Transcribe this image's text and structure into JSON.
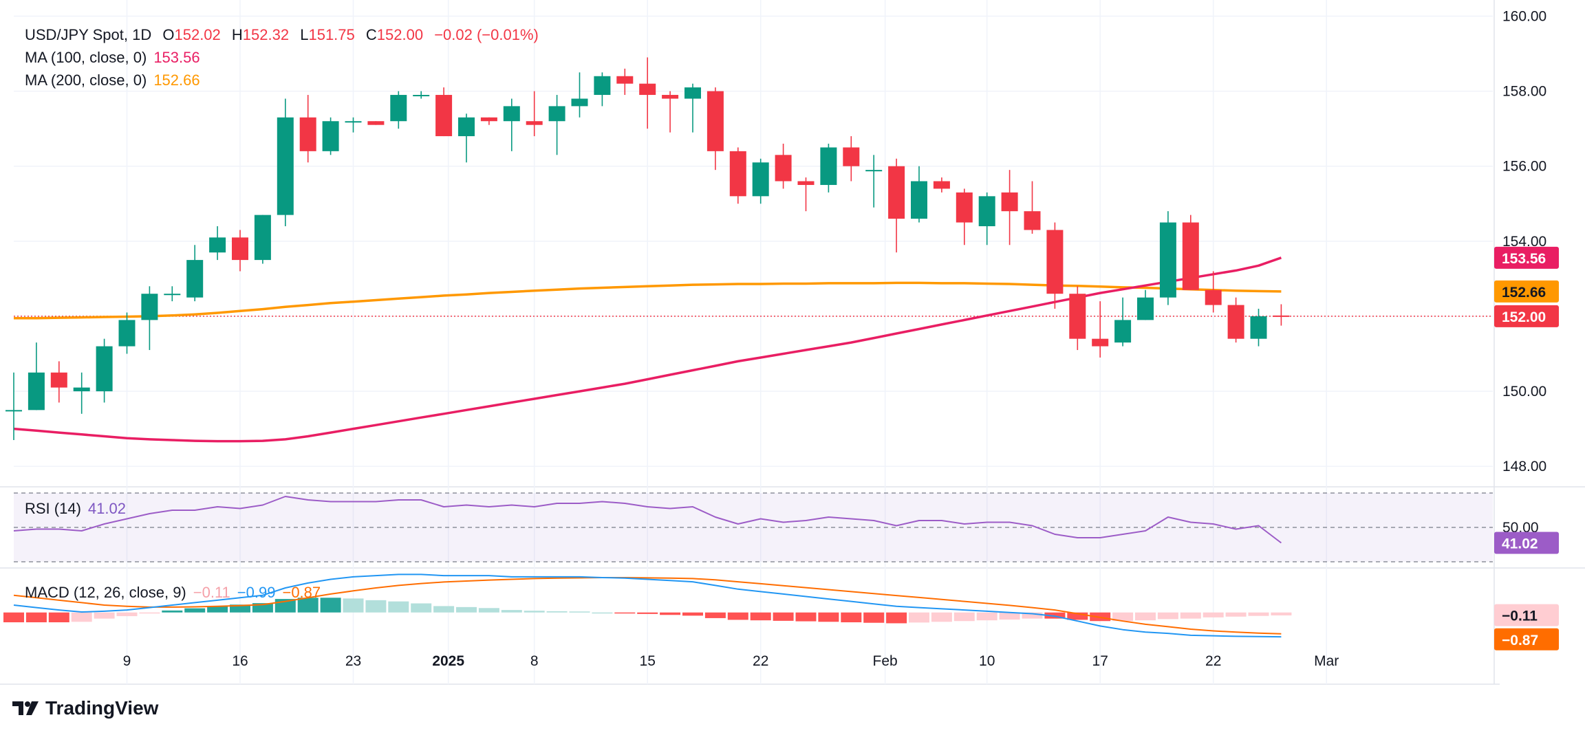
{
  "header": {
    "symbol": "USD/JPY Spot, 1D",
    "o_label": "O",
    "o_value": "152.02",
    "h_label": "H",
    "h_value": "152.32",
    "l_label": "L",
    "l_value": "151.75",
    "c_label": "C",
    "c_value": "152.00",
    "change": "−0.02 (−0.01%)"
  },
  "legends": {
    "ma100_label": "MA (100, close, 0)",
    "ma100_value": "153.56",
    "ma200_label": "MA (200, close, 0)",
    "ma200_value": "152.66",
    "rsi_label": "RSI (14)",
    "rsi_value": "41.02",
    "macd_label": "MACD (12, 26, close, 9)",
    "macd_hist": "−0.11",
    "macd_line": "−0.99",
    "macd_signal": "−0.87"
  },
  "brand": {
    "name": "TradingView"
  },
  "colors": {
    "up": "#089981",
    "down": "#f23645",
    "ma100": "#e91e63",
    "ma200": "#ff9800",
    "rsi": "#9c5cc7",
    "macd": "#2196f3",
    "signal": "#ff6d00"
  },
  "chart_data": {
    "type": "candlestick",
    "title": "USD/JPY Spot, 1D",
    "price_axis": {
      "ticks": [
        "160.00",
        "158.00",
        "156.00",
        "154.00",
        "152.00",
        "150.00",
        "148.00"
      ],
      "range": [
        147.6,
        160.1
      ]
    },
    "rsi_axis": {
      "ticks": [
        "50.00"
      ],
      "range": [
        28,
        72
      ]
    },
    "x_labels": [
      "9",
      "16",
      "23",
      "2025",
      "8",
      "15",
      "22",
      "Feb",
      "10",
      "17",
      "22",
      "Mar"
    ],
    "tags": {
      "ma100": "153.56",
      "ma200": "152.66",
      "price": "152.00",
      "rsi": "41.02",
      "macd_hist": "−0.11",
      "macd_signal": "−0.87"
    },
    "candles": [
      {
        "o": 149.5,
        "h": 150.5,
        "l": 148.7,
        "c": 149.5
      },
      {
        "o": 149.5,
        "h": 151.3,
        "l": 149.5,
        "c": 150.5
      },
      {
        "o": 150.5,
        "h": 150.8,
        "l": 149.7,
        "c": 150.1
      },
      {
        "o": 150.0,
        "h": 150.5,
        "l": 149.4,
        "c": 150.1
      },
      {
        "o": 150.0,
        "h": 151.4,
        "l": 149.7,
        "c": 151.2
      },
      {
        "o": 151.2,
        "h": 152.1,
        "l": 151.0,
        "c": 151.9
      },
      {
        "o": 151.9,
        "h": 152.8,
        "l": 151.1,
        "c": 152.6
      },
      {
        "o": 152.6,
        "h": 152.8,
        "l": 152.4,
        "c": 152.6
      },
      {
        "o": 152.5,
        "h": 153.9,
        "l": 152.4,
        "c": 153.5
      },
      {
        "o": 153.7,
        "h": 154.4,
        "l": 153.5,
        "c": 154.1
      },
      {
        "o": 154.1,
        "h": 154.3,
        "l": 153.2,
        "c": 153.5
      },
      {
        "o": 153.5,
        "h": 154.7,
        "l": 153.4,
        "c": 154.7
      },
      {
        "o": 154.7,
        "h": 157.8,
        "l": 154.4,
        "c": 157.3
      },
      {
        "o": 157.3,
        "h": 157.9,
        "l": 156.1,
        "c": 156.4
      },
      {
        "o": 156.4,
        "h": 157.3,
        "l": 156.3,
        "c": 157.2
      },
      {
        "o": 157.2,
        "h": 157.3,
        "l": 156.9,
        "c": 157.2
      },
      {
        "o": 157.2,
        "h": 157.2,
        "l": 157.1,
        "c": 157.1
      },
      {
        "o": 157.2,
        "h": 158.0,
        "l": 157.0,
        "c": 157.9
      },
      {
        "o": 157.9,
        "h": 158.0,
        "l": 157.8,
        "c": 157.9
      },
      {
        "o": 157.9,
        "h": 158.1,
        "l": 156.8,
        "c": 156.8
      },
      {
        "o": 156.8,
        "h": 157.4,
        "l": 156.1,
        "c": 157.3
      },
      {
        "o": 157.3,
        "h": 157.3,
        "l": 157.1,
        "c": 157.2
      },
      {
        "o": 157.2,
        "h": 157.8,
        "l": 156.4,
        "c": 157.6
      },
      {
        "o": 157.2,
        "h": 158.0,
        "l": 156.8,
        "c": 157.1
      },
      {
        "o": 157.2,
        "h": 157.9,
        "l": 156.3,
        "c": 157.6
      },
      {
        "o": 157.6,
        "h": 158.5,
        "l": 157.3,
        "c": 157.8
      },
      {
        "o": 157.9,
        "h": 158.5,
        "l": 157.6,
        "c": 158.4
      },
      {
        "o": 158.4,
        "h": 158.6,
        "l": 157.9,
        "c": 158.2
      },
      {
        "o": 158.2,
        "h": 158.9,
        "l": 157.0,
        "c": 157.9
      },
      {
        "o": 157.9,
        "h": 158.0,
        "l": 156.9,
        "c": 157.8
      },
      {
        "o": 157.8,
        "h": 158.2,
        "l": 156.9,
        "c": 158.1
      },
      {
        "o": 158.0,
        "h": 158.1,
        "l": 155.9,
        "c": 156.4
      },
      {
        "o": 156.4,
        "h": 156.5,
        "l": 155.0,
        "c": 155.2
      },
      {
        "o": 155.2,
        "h": 156.2,
        "l": 155.0,
        "c": 156.1
      },
      {
        "o": 156.3,
        "h": 156.6,
        "l": 155.4,
        "c": 155.6
      },
      {
        "o": 155.6,
        "h": 155.7,
        "l": 154.8,
        "c": 155.5
      },
      {
        "o": 155.5,
        "h": 156.6,
        "l": 155.3,
        "c": 156.5
      },
      {
        "o": 156.5,
        "h": 156.8,
        "l": 155.6,
        "c": 156.0
      },
      {
        "o": 155.9,
        "h": 156.3,
        "l": 154.9,
        "c": 155.9
      },
      {
        "o": 156.0,
        "h": 156.2,
        "l": 153.7,
        "c": 154.6
      },
      {
        "o": 154.6,
        "h": 156.0,
        "l": 154.5,
        "c": 155.6
      },
      {
        "o": 155.6,
        "h": 155.7,
        "l": 155.3,
        "c": 155.4
      },
      {
        "o": 155.3,
        "h": 155.4,
        "l": 153.9,
        "c": 154.5
      },
      {
        "o": 154.4,
        "h": 155.3,
        "l": 153.9,
        "c": 155.2
      },
      {
        "o": 155.3,
        "h": 155.9,
        "l": 153.9,
        "c": 154.8
      },
      {
        "o": 154.8,
        "h": 155.6,
        "l": 154.2,
        "c": 154.3
      },
      {
        "o": 154.3,
        "h": 154.5,
        "l": 152.2,
        "c": 152.6
      },
      {
        "o": 152.6,
        "h": 152.8,
        "l": 151.1,
        "c": 151.4
      },
      {
        "o": 151.4,
        "h": 152.4,
        "l": 150.9,
        "c": 151.2
      },
      {
        "o": 151.3,
        "h": 152.5,
        "l": 151.2,
        "c": 151.9
      },
      {
        "o": 151.9,
        "h": 152.7,
        "l": 151.9,
        "c": 152.5
      },
      {
        "o": 152.5,
        "h": 154.8,
        "l": 152.3,
        "c": 154.5
      },
      {
        "o": 154.5,
        "h": 154.7,
        "l": 152.7,
        "c": 152.7
      },
      {
        "o": 152.7,
        "h": 153.2,
        "l": 152.1,
        "c": 152.3
      },
      {
        "o": 152.3,
        "h": 152.5,
        "l": 151.3,
        "c": 151.4
      },
      {
        "o": 151.4,
        "h": 152.2,
        "l": 151.2,
        "c": 152.0
      },
      {
        "o": 152.02,
        "h": 152.32,
        "l": 151.75,
        "c": 152.0
      }
    ],
    "ma100": [
      149.0,
      148.95,
      148.9,
      148.85,
      148.8,
      148.75,
      148.72,
      148.7,
      148.68,
      148.67,
      148.67,
      148.68,
      148.72,
      148.8,
      148.9,
      149.0,
      149.1,
      149.2,
      149.3,
      149.4,
      149.5,
      149.6,
      149.7,
      149.8,
      149.9,
      150.0,
      150.1,
      150.2,
      150.32,
      150.44,
      150.56,
      150.68,
      150.8,
      150.9,
      151.0,
      151.1,
      151.2,
      151.3,
      151.42,
      151.54,
      151.66,
      151.78,
      151.9,
      152.02,
      152.14,
      152.26,
      152.38,
      152.5,
      152.62,
      152.72,
      152.82,
      152.92,
      153.02,
      153.12,
      153.22,
      153.35,
      153.56
    ],
    "ma200": [
      151.95,
      151.95,
      151.96,
      151.97,
      151.98,
      151.99,
      152.0,
      152.02,
      152.05,
      152.09,
      152.14,
      152.19,
      152.25,
      152.3,
      152.35,
      152.39,
      152.43,
      152.47,
      152.51,
      152.55,
      152.58,
      152.62,
      152.65,
      152.68,
      152.71,
      152.74,
      152.76,
      152.78,
      152.8,
      152.82,
      152.84,
      152.85,
      152.86,
      152.86,
      152.87,
      152.87,
      152.88,
      152.88,
      152.88,
      152.89,
      152.89,
      152.88,
      152.88,
      152.87,
      152.86,
      152.84,
      152.82,
      152.81,
      152.79,
      152.77,
      152.76,
      152.74,
      152.72,
      152.7,
      152.68,
      152.67,
      152.66
    ],
    "rsi": [
      48,
      49,
      49,
      48,
      52,
      55,
      58,
      60,
      60,
      62,
      61,
      63,
      68,
      66,
      65,
      65,
      65,
      66,
      66,
      62,
      63,
      62,
      63,
      62,
      64,
      64,
      65,
      64,
      62,
      61,
      62,
      56,
      52,
      55,
      53,
      54,
      56,
      55,
      54,
      51,
      54,
      54,
      52,
      53,
      53,
      51,
      46,
      44,
      44,
      46,
      48,
      56,
      53,
      52,
      49,
      51,
      41.02
    ],
    "macd": [
      0.3,
      0.2,
      0.1,
      0.02,
      0.05,
      0.1,
      0.2,
      0.3,
      0.4,
      0.5,
      0.6,
      0.7,
      1.0,
      1.2,
      1.35,
      1.45,
      1.5,
      1.55,
      1.55,
      1.5,
      1.5,
      1.5,
      1.45,
      1.45,
      1.45,
      1.45,
      1.42,
      1.4,
      1.35,
      1.3,
      1.25,
      1.1,
      0.95,
      0.85,
      0.75,
      0.65,
      0.55,
      0.45,
      0.35,
      0.25,
      0.2,
      0.15,
      0.1,
      0.05,
      0.0,
      -0.05,
      -0.15,
      -0.35,
      -0.55,
      -0.7,
      -0.8,
      -0.85,
      -0.93,
      -0.95,
      -0.97,
      -0.98,
      -0.99
    ],
    "signal": [
      0.7,
      0.6,
      0.5,
      0.4,
      0.3,
      0.25,
      0.22,
      0.22,
      0.23,
      0.25,
      0.28,
      0.32,
      0.45,
      0.6,
      0.75,
      0.88,
      1.0,
      1.1,
      1.18,
      1.24,
      1.28,
      1.32,
      1.35,
      1.38,
      1.4,
      1.41,
      1.42,
      1.42,
      1.41,
      1.4,
      1.38,
      1.33,
      1.25,
      1.17,
      1.09,
      1.01,
      0.93,
      0.85,
      0.77,
      0.69,
      0.61,
      0.53,
      0.45,
      0.37,
      0.29,
      0.2,
      0.1,
      -0.05,
      -0.2,
      -0.35,
      -0.48,
      -0.58,
      -0.68,
      -0.75,
      -0.8,
      -0.84,
      -0.87
    ]
  }
}
